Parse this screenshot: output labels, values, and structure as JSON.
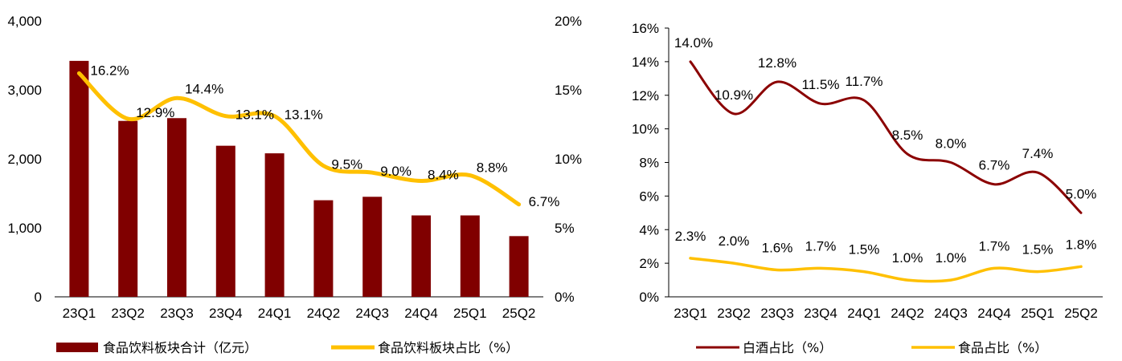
{
  "colors": {
    "bar": "#800000",
    "line_yellow": "#FFC000",
    "line_darkred": "#8B0000",
    "axis": "#000000"
  },
  "chart_data": [
    {
      "type": "bar",
      "categories": [
        "23Q1",
        "23Q2",
        "23Q3",
        "23Q4",
        "24Q1",
        "24Q2",
        "24Q3",
        "24Q4",
        "25Q1",
        "25Q2"
      ],
      "series": [
        {
          "name": "食品饮料板块合计（亿元）",
          "type": "bar",
          "axis": "left",
          "values": [
            3420,
            2550,
            2590,
            2190,
            2080,
            1400,
            1450,
            1180,
            1180,
            880
          ]
        },
        {
          "name": "食品饮料板块占比（%）",
          "type": "line",
          "axis": "right",
          "values": [
            16.2,
            12.9,
            14.4,
            13.1,
            13.1,
            9.5,
            9.0,
            8.4,
            8.8,
            6.7
          ],
          "labels": [
            "16.2%",
            "12.9%",
            "14.4%",
            "13.1%",
            "13.1%",
            "9.5%",
            "9.0%",
            "8.4%",
            "8.8%",
            "6.7%"
          ]
        }
      ],
      "ylim": [
        0,
        4000
      ],
      "yticks": [
        "0",
        "1,000",
        "2,000",
        "3,000",
        "4,000"
      ],
      "y2lim": [
        0,
        20
      ],
      "y2ticks": [
        "0%",
        "5%",
        "10%",
        "15%",
        "20%"
      ],
      "grid": false,
      "legend": "bottom"
    },
    {
      "type": "line",
      "categories": [
        "23Q1",
        "23Q2",
        "23Q3",
        "23Q4",
        "24Q1",
        "24Q2",
        "24Q3",
        "24Q4",
        "25Q1",
        "25Q2"
      ],
      "series": [
        {
          "name": "白酒占比（%）",
          "values": [
            14.0,
            10.9,
            12.8,
            11.5,
            11.7,
            8.5,
            8.0,
            6.7,
            7.4,
            5.0
          ],
          "labels": [
            "14.0%",
            "10.9%",
            "12.8%",
            "11.5%",
            "11.7%",
            "8.5%",
            "8.0%",
            "6.7%",
            "7.4%",
            "5.0%"
          ]
        },
        {
          "name": "食品占比（%）",
          "values": [
            2.3,
            2.0,
            1.6,
            1.7,
            1.5,
            1.0,
            1.0,
            1.7,
            1.5,
            1.8
          ],
          "labels": [
            "2.3%",
            "2.0%",
            "1.6%",
            "1.7%",
            "1.5%",
            "1.0%",
            "1.0%",
            "1.7%",
            "1.5%",
            "1.8%"
          ]
        }
      ],
      "ylim": [
        0,
        16
      ],
      "yticks": [
        "0%",
        "2%",
        "4%",
        "6%",
        "8%",
        "10%",
        "12%",
        "14%",
        "16%"
      ],
      "grid": false,
      "legend": "bottom"
    }
  ]
}
